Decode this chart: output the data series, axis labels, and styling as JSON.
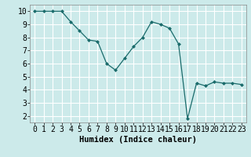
{
  "x": [
    0,
    1,
    2,
    3,
    4,
    5,
    6,
    7,
    8,
    9,
    10,
    11,
    12,
    13,
    14,
    15,
    16,
    17,
    18,
    19,
    20,
    21,
    22,
    23
  ],
  "y": [
    10.0,
    10.0,
    10.0,
    10.0,
    9.2,
    8.5,
    7.8,
    7.7,
    6.0,
    5.5,
    6.4,
    7.3,
    8.0,
    9.2,
    9.0,
    8.7,
    7.5,
    1.8,
    4.5,
    4.3,
    4.6,
    4.5,
    4.5,
    4.4
  ],
  "line_color": "#1a6b6b",
  "marker": "D",
  "marker_size": 2.5,
  "bg_color": "#cceaea",
  "grid_color": "#ffffff",
  "xlabel": "Humidex (Indice chaleur)",
  "ylim": [
    1.5,
    10.5
  ],
  "xlim": [
    -0.5,
    23.5
  ],
  "yticks": [
    2,
    3,
    4,
    5,
    6,
    7,
    8,
    9,
    10
  ],
  "xticks": [
    0,
    1,
    2,
    3,
    4,
    5,
    6,
    7,
    8,
    9,
    10,
    11,
    12,
    13,
    14,
    15,
    16,
    17,
    18,
    19,
    20,
    21,
    22,
    23
  ],
  "xlabel_fontsize": 7.5,
  "tick_fontsize": 7
}
